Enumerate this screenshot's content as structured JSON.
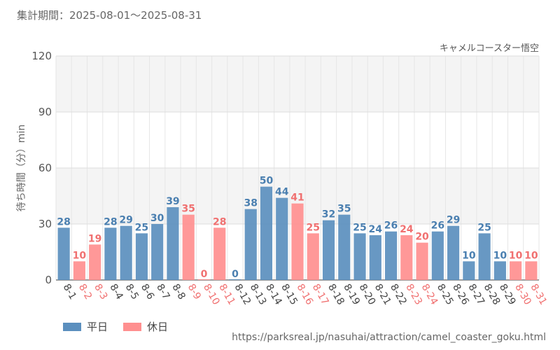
{
  "period_label": "集計期間：2025-08-01～2025-08-31",
  "source_url": "https://parksreal.jp/nasuhai/attraction/camel_coaster_goku.html",
  "colors": {
    "weekday": "#5b8fbe",
    "holiday": "#ff8f8f",
    "weekday_text": "#4a7fb0",
    "holiday_text": "#f07070"
  },
  "chart_data": {
    "type": "bar",
    "title": "キャメルコースター悟空",
    "xlabel": "",
    "ylabel": "待ち時間（分）min",
    "ylim": [
      0,
      120
    ],
    "yticks": [
      0,
      30,
      60,
      90,
      120
    ],
    "grid": true,
    "legend_position": "bottom-left",
    "categories": [
      "8-1",
      "8-2",
      "8-3",
      "8-4",
      "8-5",
      "8-6",
      "8-7",
      "8-8",
      "8-9",
      "8-10",
      "8-11",
      "8-12",
      "8-13",
      "8-14",
      "8-15",
      "8-16",
      "8-17",
      "8-18",
      "8-19",
      "8-20",
      "8-21",
      "8-22",
      "8-23",
      "8-24",
      "8-25",
      "8-26",
      "8-27",
      "8-28",
      "8-29",
      "8-30",
      "8-31"
    ],
    "values": [
      28,
      10,
      19,
      28,
      29,
      25,
      30,
      39,
      35,
      0,
      28,
      0,
      38,
      50,
      44,
      41,
      25,
      32,
      35,
      25,
      24,
      26,
      24,
      20,
      26,
      29,
      10,
      25,
      10,
      10,
      10
    ],
    "day_type": [
      "weekday",
      "holiday",
      "holiday",
      "weekday",
      "weekday",
      "weekday",
      "weekday",
      "weekday",
      "holiday",
      "holiday",
      "holiday",
      "weekday",
      "weekday",
      "weekday",
      "weekday",
      "holiday",
      "holiday",
      "weekday",
      "weekday",
      "weekday",
      "weekday",
      "weekday",
      "holiday",
      "holiday",
      "weekday",
      "weekday",
      "weekday",
      "weekday",
      "weekday",
      "holiday",
      "holiday"
    ],
    "series": [
      {
        "name": "平日",
        "key": "weekday"
      },
      {
        "name": "休日",
        "key": "holiday"
      }
    ]
  }
}
